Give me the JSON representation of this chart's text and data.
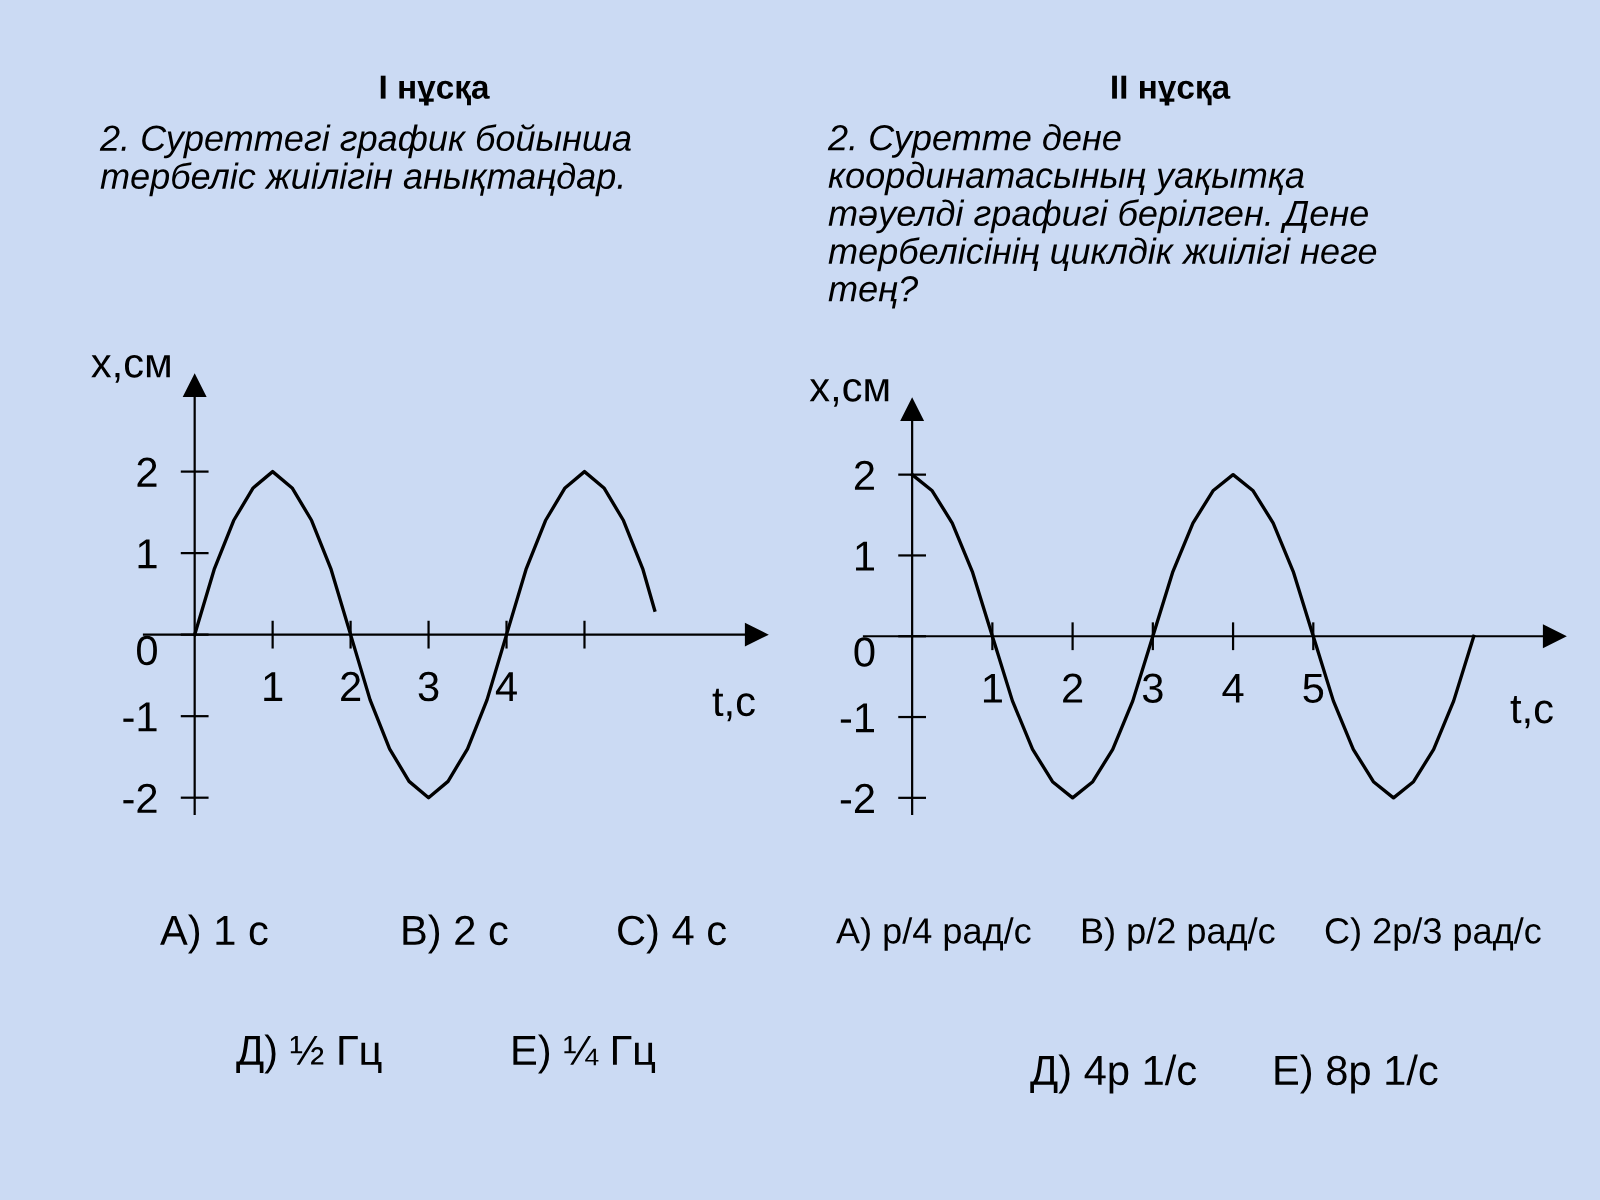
{
  "chart_data": [
    {
      "type": "line",
      "title": "I нұсқа",
      "subtitle": "2. Суреттегі график бойынша\nтербеліс жиілігін анықтаңдар.",
      "xlabel": "t,с",
      "ylabel": "x,см",
      "x": [
        0,
        0.25,
        0.5,
        0.75,
        1,
        1.25,
        1.5,
        1.75,
        2,
        2.25,
        2.5,
        2.75,
        3,
        3.25,
        3.5,
        3.75,
        4,
        4.25,
        4.5,
        4.75,
        5,
        5.25,
        5.5,
        5.75,
        5.9
      ],
      "series": [
        {
          "color": "#000000",
          "values": [
            0,
            0.8,
            1.4,
            1.8,
            2,
            1.8,
            1.4,
            0.8,
            0,
            -0.8,
            -1.4,
            -1.8,
            -2,
            -1.8,
            -1.4,
            -0.8,
            0,
            0.8,
            1.4,
            1.8,
            2,
            1.8,
            1.4,
            0.8,
            0.3
          ]
        }
      ],
      "xlim": [
        -0.65,
        7.2
      ],
      "ylim": [
        -2.2,
        3.05
      ],
      "xticks": [
        1,
        2,
        3,
        4,
        {
          "value": 5,
          "label": null
        }
      ],
      "yticks": [
        -2,
        -1,
        0,
        1,
        2
      ],
      "grid": false,
      "legend": false,
      "marker": "none",
      "line_style": "solid",
      "annotations": [
        "А) 1 с",
        "В) 2 с",
        "С) 4 с",
        "Д) ½ Гц",
        "Е) ¼ Гц"
      ]
    },
    {
      "type": "line",
      "title": "II нұсқа",
      "subtitle": "2. Суретте дене\nкоординатасының уақытқа\nтәуелді графигі берілген. Дене\nтербелісінің циклдік жиілігі неге\nтең?",
      "xlabel": "t,с",
      "ylabel": "x,см",
      "x": [
        0,
        0.25,
        0.5,
        0.75,
        1,
        1.25,
        1.5,
        1.75,
        2,
        2.25,
        2.5,
        2.75,
        3,
        3.25,
        3.5,
        3.75,
        4,
        4.25,
        4.5,
        4.75,
        5,
        5.25,
        5.5,
        5.75,
        6,
        6.25,
        6.5,
        6.75,
        7
      ],
      "series": [
        {
          "color": "#000000",
          "values": [
            2,
            1.8,
            1.4,
            0.8,
            0,
            -0.8,
            -1.4,
            -1.8,
            -2,
            -1.8,
            -1.4,
            -0.8,
            0,
            0.8,
            1.4,
            1.8,
            2,
            1.8,
            1.4,
            0.8,
            0,
            -0.8,
            -1.4,
            -1.8,
            -2,
            -1.8,
            -1.4,
            -0.8,
            0
          ]
        }
      ],
      "xlim": [
        -0.6,
        8
      ],
      "ylim": [
        -2.2,
        2.8
      ],
      "xticks": [
        1,
        2,
        3,
        4,
        5
      ],
      "yticks": [
        -2,
        -1,
        0,
        1,
        2
      ],
      "grid": false,
      "legend": false,
      "marker": "none",
      "line_style": "solid",
      "annotations": [
        "А) p/4 рад/с",
        "В) p/2 рад/с",
        "С) 2p/3 рад/с",
        "Д) 4p 1/с",
        "Е) 8p 1/с"
      ]
    }
  ]
}
